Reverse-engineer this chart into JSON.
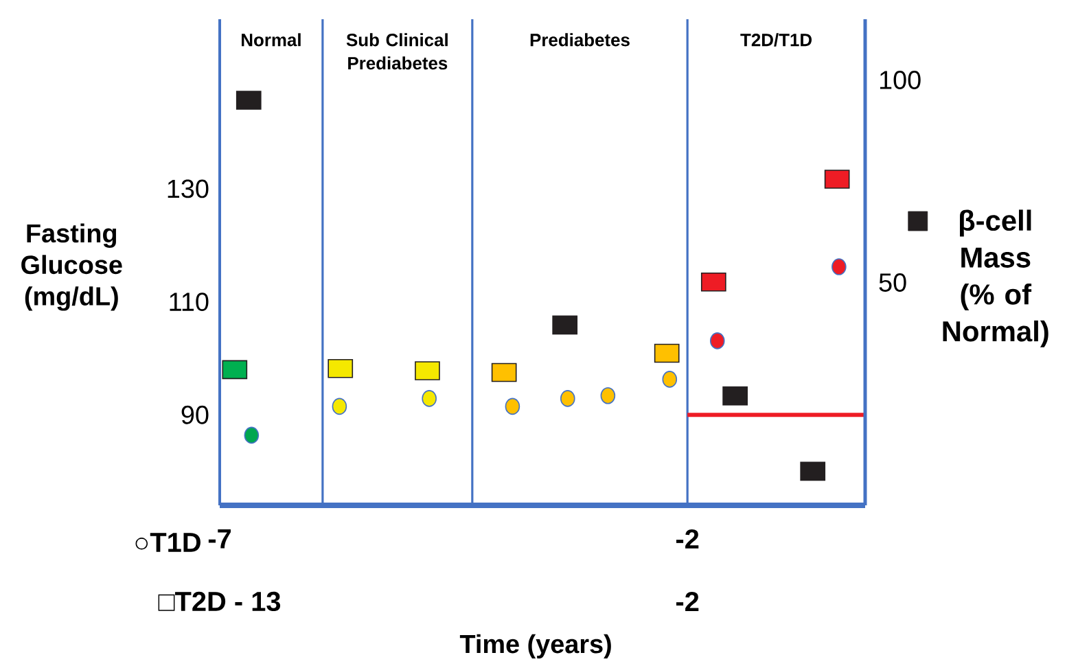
{
  "chart_data": {
    "type": "scatter",
    "xlabel": "Time (years)",
    "ylabel": "Fasting Glucose (mg/dL)",
    "legend": "right",
    "xlim": [
      -7,
      -0.1
    ],
    "xticks": [
      -7,
      -2
    ],
    "ylim": [
      74,
      160
    ],
    "yticks": [
      90,
      110,
      130
    ],
    "y2lim": [
      -5,
      115
    ],
    "y2ticks": [
      50,
      100
    ],
    "annotations": [
      "Normal",
      "Sub Clinical Prediabetes",
      "Prediabetes",
      "T2D/T1D",
      "○T1D",
      "□T2D - 13",
      "-2"
    ],
    "ref_lines": [
      {
        "axis": "x",
        "value": -5.9,
        "color": "#4472c4"
      },
      {
        "axis": "x",
        "value": -4.3,
        "color": "#4472c4"
      },
      {
        "axis": "x",
        "value": -2,
        "color": "#4472c4"
      }
    ],
    "series": [
      {
        "type": "scatter",
        "marker": "square",
        "x": [
          -6.84,
          -5.71,
          -4.78,
          -3.96,
          -2.22,
          -1.72,
          -0.4
        ],
        "values": [
          98,
          98.2,
          97.8,
          97.5,
          100.9,
          113.5,
          131.7
        ],
        "colors": [
          "#00b050",
          "#f5e800",
          "#f5e800",
          "#ffc000",
          "#ffc000",
          "#ee1c25",
          "#ee1c25"
        ]
      },
      {
        "type": "scatter",
        "marker": "circle",
        "x": [
          -6.66,
          -5.72,
          -4.76,
          -3.87,
          -3.28,
          -2.85,
          -2.19,
          -1.68,
          -0.38
        ],
        "values": [
          86.4,
          91.5,
          92.9,
          91.5,
          92.9,
          93.4,
          96.3,
          103.1,
          116.2
        ],
        "colors": [
          "#00a650",
          "#f5e800",
          "#f5e800",
          "#ffc000",
          "#ffc000",
          "#ffc000",
          "#ffc000",
          "#ee1c25",
          "#ee1c25"
        ]
      },
      {
        "type": "scatter",
        "marker": "square",
        "axis": "y2",
        "name": "β-cell Mass (% of Normal)",
        "x": [
          -6.69,
          -3.31,
          -1.49,
          -0.66
        ],
        "values": [
          95,
          39.5,
          22,
          3.4
        ],
        "color": "#231f20"
      },
      {
        "type": "line",
        "marker": "none",
        "x": [
          -2,
          -0.1
        ],
        "values": [
          90,
          90
        ],
        "color": "#ee1c25"
      }
    ]
  }
}
